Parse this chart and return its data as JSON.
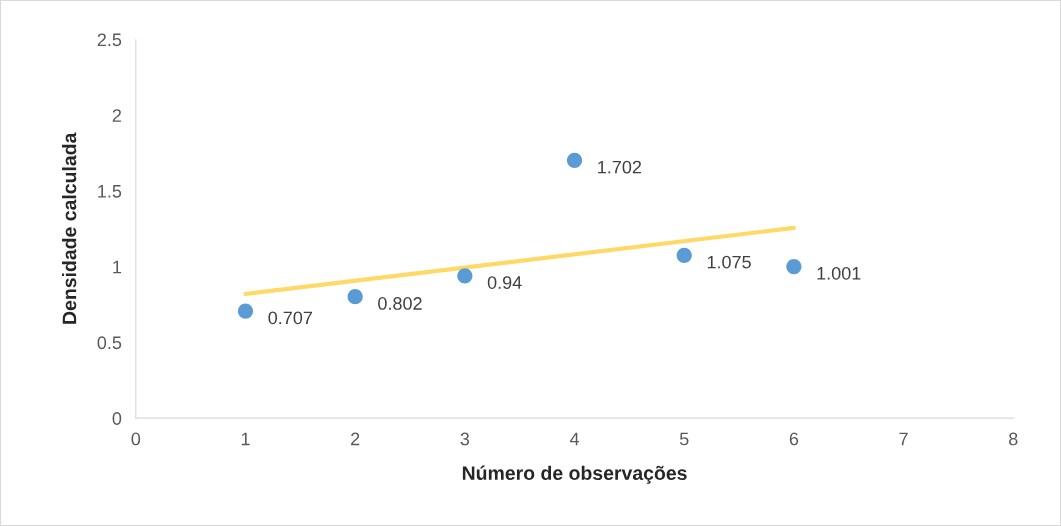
{
  "chart_data": {
    "type": "scatter",
    "xlabel": "Número de observações",
    "ylabel": "Densidade calculada",
    "xlim": [
      0,
      8
    ],
    "xticks": [
      0,
      1,
      2,
      3,
      4,
      5,
      6,
      7,
      8
    ],
    "ylim": [
      0,
      2.5
    ],
    "yticks": [
      0,
      0.5,
      1,
      1.5,
      2,
      2.5
    ],
    "grid": false,
    "legend": false,
    "marker": "circle",
    "x": [
      1,
      2,
      3,
      4,
      5,
      6
    ],
    "series": [
      {
        "color": "#5b9bd5",
        "values": [
          0.707,
          0.802,
          0.94,
          1.702,
          1.075,
          1.001
        ],
        "value_labels": [
          "0.707",
          "0.802",
          "0.94",
          "1.702",
          "1.075",
          "1.001"
        ]
      },
      {
        "type": "line",
        "color": "#ffd966",
        "x": [
          1,
          6
        ],
        "values": [
          0.82,
          1.256
        ],
        "marker": "none",
        "line_style": "solid"
      }
    ]
  }
}
